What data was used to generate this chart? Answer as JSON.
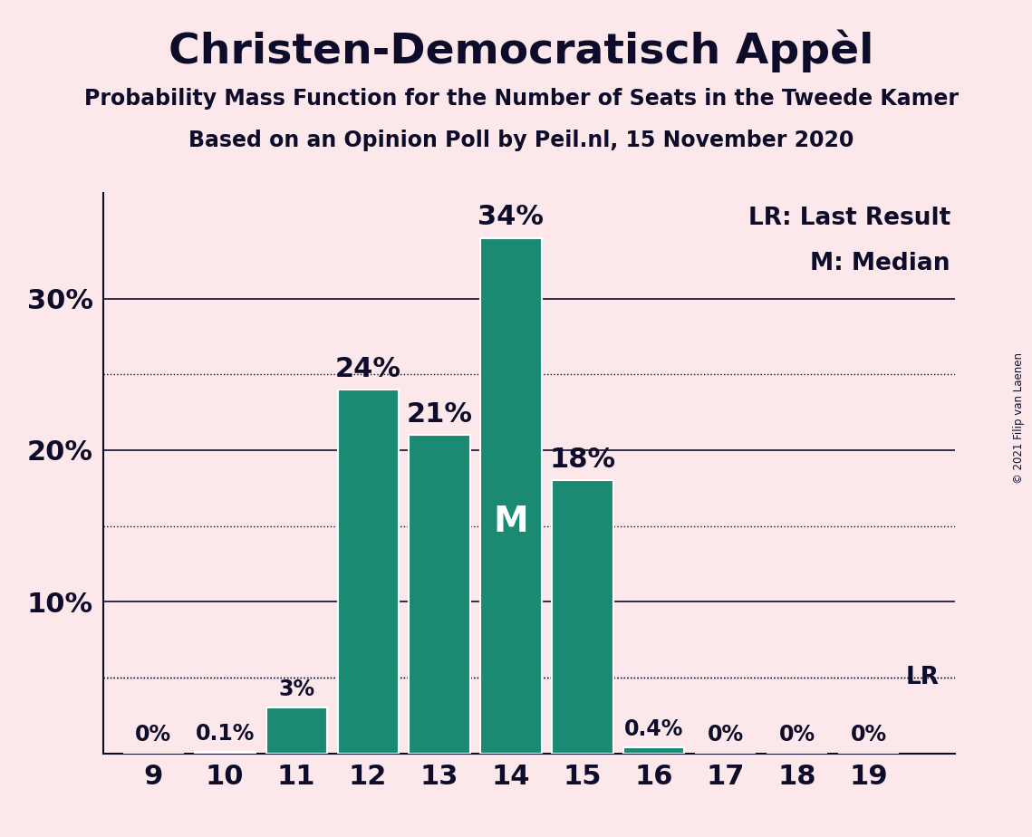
{
  "title": "Christen-Democratisch Appèl",
  "subtitle1": "Probability Mass Function for the Number of Seats in the Tweede Kamer",
  "subtitle2": "Based on an Opinion Poll by Peil.nl, 15 November 2020",
  "copyright": "© 2021 Filip van Laenen",
  "seats": [
    9,
    10,
    11,
    12,
    13,
    14,
    15,
    16,
    17,
    18,
    19
  ],
  "probabilities": [
    0.0,
    0.1,
    3.0,
    24.0,
    21.0,
    34.0,
    18.0,
    0.4,
    0.0,
    0.0,
    0.0
  ],
  "bar_color": "#1a8a72",
  "background_color": "#fce8ea",
  "text_color": "#0d0d2b",
  "median_seat": 14,
  "lr_seat": 19,
  "lr_value": 5.0,
  "yticks_solid": [
    10,
    20,
    30
  ],
  "yticks_dotted": [
    5,
    15,
    25
  ],
  "ylim": [
    0,
    37
  ],
  "legend_lr": "LR: Last Result",
  "legend_m": "M: Median"
}
